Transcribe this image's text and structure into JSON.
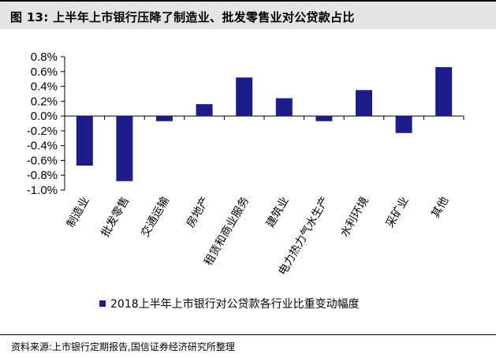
{
  "header": {
    "title": "图 13:  上半年上市银行压降了制造业、批发零售业对公贷款占比"
  },
  "footer": {
    "source": "资料来源:上市银行定期报告,国信证券经济研究所整理"
  },
  "chart_data": {
    "type": "bar",
    "title": "",
    "xlabel": "",
    "ylabel": "",
    "categories": [
      "制造业",
      "批发零售",
      "交通运输",
      "房地产",
      "租赁和商业服务",
      "建筑业",
      "电力热力气水生产",
      "水利环境",
      "采矿业",
      "其他"
    ],
    "series": [
      {
        "name": "2018上半年上市银行对公贷款各行业比重变动幅度",
        "values": [
          -0.67,
          -0.88,
          -0.07,
          0.16,
          0.52,
          0.24,
          -0.07,
          0.35,
          -0.23,
          0.66
        ]
      }
    ],
    "ylim": [
      -1.0,
      0.8
    ],
    "yticks": [
      0.8,
      0.6,
      0.4,
      0.2,
      0.0,
      -0.2,
      -0.4,
      -0.6,
      -0.8,
      -1.0
    ],
    "ytick_labels": [
      "0.8%",
      "0.6%",
      "0.4%",
      "0.2%",
      "0.0%",
      "-0.2%",
      "-0.4%",
      "-0.6%",
      "-0.8%",
      "-1.0%"
    ],
    "grid": false,
    "legend_position": "bottom-left",
    "colors": {
      "bar": "#1c1c8a",
      "axis": "#000000"
    }
  }
}
